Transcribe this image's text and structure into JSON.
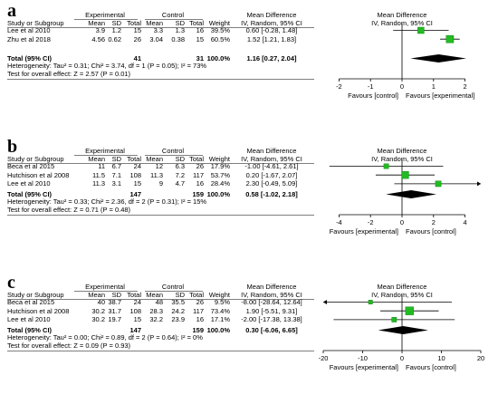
{
  "chart_data": [
    {
      "type": "forest",
      "panel_label": "a",
      "groups": [
        "Experimental",
        "Control"
      ],
      "columns": [
        "Study or Subgroup",
        "Mean",
        "SD",
        "Total",
        "Mean",
        "SD",
        "Total",
        "Weight",
        "IV, Random, 95% CI",
        "IV, Random, 95% CI"
      ],
      "effect_header": "Mean Difference",
      "studies": [
        {
          "name": "Lee et al 2010",
          "exp_mean": "3.9",
          "exp_sd": "1.2",
          "exp_total": "15",
          "ctrl_mean": "3.3",
          "ctrl_sd": "1.3",
          "ctrl_total": "16",
          "weight": "39.5%",
          "ci_text": "0.60 [-0.28, 1.48]",
          "md": 0.6,
          "lo": -0.28,
          "hi": 1.48,
          "w": 39.5
        },
        {
          "name": "Zhu et al 2018",
          "exp_mean": "4.56",
          "exp_sd": "0.62",
          "exp_total": "26",
          "ctrl_mean": "3.04",
          "ctrl_sd": "0.38",
          "ctrl_total": "15",
          "weight": "60.5%",
          "ci_text": "1.52 [1.21, 1.83]",
          "md": 1.52,
          "lo": 1.21,
          "hi": 1.83,
          "w": 60.5
        }
      ],
      "total": {
        "label": "Total (95% CI)",
        "exp_total": "41",
        "ctrl_total": "31",
        "weight": "100.0%",
        "ci_text": "1.16 [0.27, 2.04]",
        "md": 1.16,
        "lo": 0.27,
        "hi": 2.04
      },
      "heterogeneity": "Heterogeneity: Tau² = 0.31; Chi² = 3.74, df = 1 (P = 0.05); I² = 73%",
      "overall_effect": "Test for overall effect: Z = 2.57 (P = 0.01)",
      "axis": {
        "ticks": [
          -2,
          -1,
          0,
          1,
          2
        ],
        "xlim": [
          -2.5,
          2.5
        ]
      },
      "favours_left": "Favours [control]",
      "favours_right": "Favours [experimental]"
    },
    {
      "type": "forest",
      "panel_label": "b",
      "groups": [
        "Experimental",
        "Control"
      ],
      "columns": [
        "Study or Subgroup",
        "Mean",
        "SD",
        "Total",
        "Mean",
        "SD",
        "Total",
        "Weight",
        "IV, Random, 95% CI",
        "IV, Random, 95% CI"
      ],
      "effect_header": "Mean Difference",
      "studies": [
        {
          "name": "Beca et al 2015",
          "exp_mean": "11",
          "exp_sd": "6.7",
          "exp_total": "24",
          "ctrl_mean": "12",
          "ctrl_sd": "6.3",
          "ctrl_total": "26",
          "weight": "17.9%",
          "ci_text": "-1.00 [-4.61, 2.61]",
          "md": -1.0,
          "lo": -4.61,
          "hi": 2.61,
          "w": 17.9
        },
        {
          "name": "Hutchison et al 2008",
          "exp_mean": "11.5",
          "exp_sd": "7.1",
          "exp_total": "108",
          "ctrl_mean": "11.3",
          "ctrl_sd": "7.2",
          "ctrl_total": "117",
          "weight": "53.7%",
          "ci_text": "0.20 [-1.67, 2.07]",
          "md": 0.2,
          "lo": -1.67,
          "hi": 2.07,
          "w": 53.7
        },
        {
          "name": "Lee et al 2010",
          "exp_mean": "11.3",
          "exp_sd": "3.1",
          "exp_total": "15",
          "ctrl_mean": "9",
          "ctrl_sd": "4.7",
          "ctrl_total": "16",
          "weight": "28.4%",
          "ci_text": "2.30 [-0.49, 5.09]",
          "md": 2.3,
          "lo": -0.49,
          "hi": 5.09,
          "w": 28.4
        }
      ],
      "total": {
        "label": "Total (95% CI)",
        "exp_total": "147",
        "ctrl_total": "159",
        "weight": "100.0%",
        "ci_text": "0.58 [-1.02, 2.18]",
        "md": 0.58,
        "lo": -1.02,
        "hi": 2.18
      },
      "heterogeneity": "Heterogeneity: Tau² = 0.33; Chi² = 2.36, df = 2 (P = 0.31); I² = 15%",
      "overall_effect": "Test for overall effect: Z = 0.71 (P = 0.48)",
      "axis": {
        "ticks": [
          -4,
          -2,
          0,
          2,
          4
        ],
        "xlim": [
          -5,
          5
        ]
      },
      "favours_left": "Favours [experimental]",
      "favours_right": "Favours [control]"
    },
    {
      "type": "forest",
      "panel_label": "c",
      "groups": [
        "Experimental",
        "Control"
      ],
      "columns": [
        "Study or Subgroup",
        "Mean",
        "SD",
        "Total",
        "Mean",
        "SD",
        "Total",
        "Weight",
        "IV, Random, 95% CI",
        "IV, Random, 95% CI"
      ],
      "effect_header": "Mean Difference",
      "studies": [
        {
          "name": "Beca et al 2015",
          "exp_mean": "40",
          "exp_sd": "38.7",
          "exp_total": "24",
          "ctrl_mean": "48",
          "ctrl_sd": "35.5",
          "ctrl_total": "26",
          "weight": "9.5%",
          "ci_text": "-8.00 [-28.64, 12.64]",
          "md": -8.0,
          "lo": -28.64,
          "hi": 12.64,
          "w": 9.5
        },
        {
          "name": "Hutchison et al 2008",
          "exp_mean": "30.2",
          "exp_sd": "31.7",
          "exp_total": "108",
          "ctrl_mean": "28.3",
          "ctrl_sd": "24.2",
          "ctrl_total": "117",
          "weight": "73.4%",
          "ci_text": "1.90 [-5.51, 9.31]",
          "md": 1.9,
          "lo": -5.51,
          "hi": 9.31,
          "w": 73.4
        },
        {
          "name": "Lee et al 2010",
          "exp_mean": "30.2",
          "exp_sd": "19.7",
          "exp_total": "15",
          "ctrl_mean": "32.2",
          "ctrl_sd": "23.9",
          "ctrl_total": "16",
          "weight": "17.1%",
          "ci_text": "-2.00 [-17.38, 13.38]",
          "md": -2.0,
          "lo": -17.38,
          "hi": 13.38,
          "w": 17.1
        }
      ],
      "total": {
        "label": "Total (95% CI)",
        "exp_total": "147",
        "ctrl_total": "159",
        "weight": "100.0%",
        "ci_text": "0.30 [-6.06, 6.65]",
        "md": 0.3,
        "lo": -6.06,
        "hi": 6.65
      },
      "heterogeneity": "Heterogeneity: Tau² = 0.00; Chi² = 0.89, df = 2 (P = 0.64); I² = 0%",
      "overall_effect": "Test for overall effect: Z = 0.09 (P = 0.93)",
      "axis": {
        "ticks": [
          -20,
          -10,
          0,
          10,
          20
        ],
        "xlim": [
          -20,
          20
        ]
      },
      "favours_left": "Favours [experimental]",
      "favours_right": "Favours [control]"
    }
  ],
  "colors": {
    "square": "#22bb22",
    "square_edge": "#0a7a0a",
    "diamond": "#000000",
    "rule": "#7f7f7f"
  }
}
